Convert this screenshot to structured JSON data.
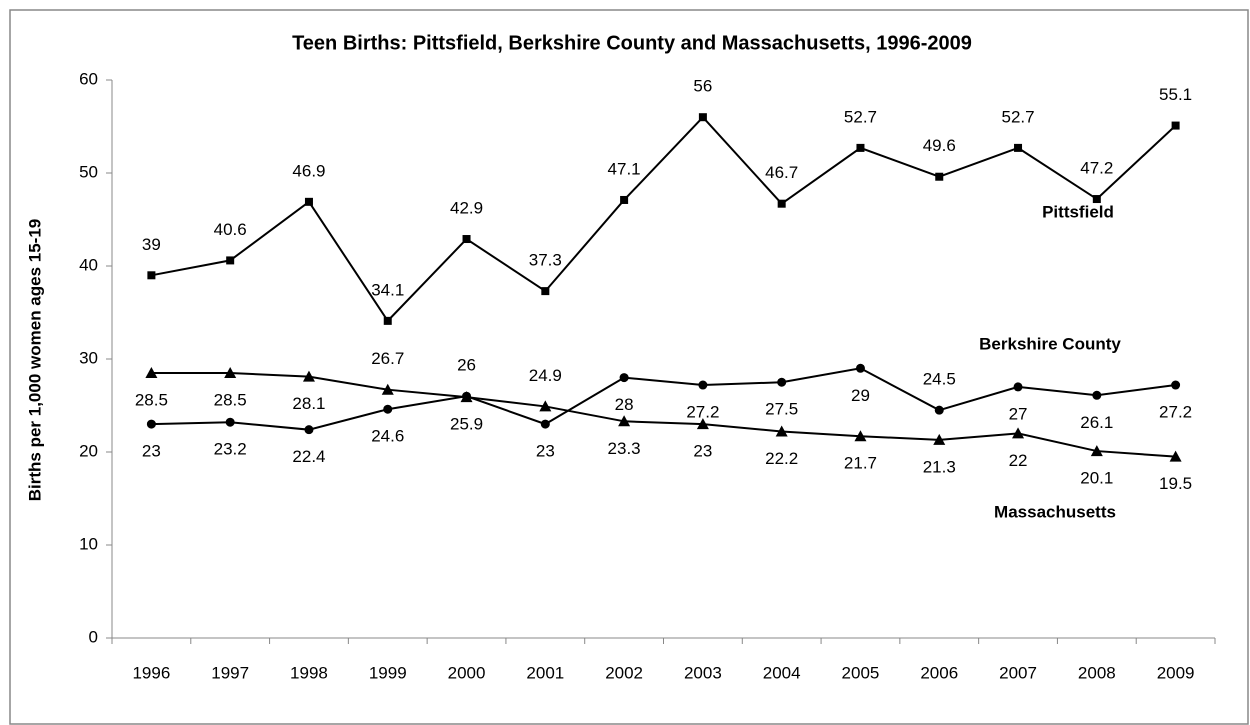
{
  "chart_data": {
    "type": "line",
    "title": "Teen Births: Pittsfield, Berkshire County and Massachusetts, 1996-2009",
    "y_label": "Births per 1,000 women ages 15-19",
    "categories": [
      "1996",
      "1997",
      "1998",
      "1999",
      "2000",
      "2001",
      "2002",
      "2003",
      "2004",
      "2005",
      "2006",
      "2007",
      "2008",
      "2009"
    ],
    "series": [
      {
        "name": "Pittsfield",
        "color": "#000000",
        "marker": "square",
        "values": [
          39,
          40.6,
          46.9,
          34.1,
          42.9,
          37.3,
          47.1,
          56,
          46.7,
          52.7,
          49.6,
          52.7,
          47.2,
          55.1
        ]
      },
      {
        "name": "Berkshire County",
        "color": "#000000",
        "marker": "circle",
        "values": [
          23,
          23.2,
          22.4,
          24.6,
          26,
          23,
          28,
          27.2,
          27.5,
          29,
          24.5,
          27,
          26.1,
          27.2
        ]
      },
      {
        "name": "Massachusetts",
        "color": "#000000",
        "marker": "triangle",
        "values": [
          28.5,
          28.5,
          28.1,
          26.7,
          25.9,
          24.9,
          23.3,
          23,
          22.2,
          21.7,
          21.3,
          22,
          20.1,
          19.5
        ]
      }
    ],
    "ylim": [
      0,
      60
    ],
    "yticks": [
      0,
      10,
      20,
      30,
      40,
      50,
      60
    ],
    "grid": false
  }
}
